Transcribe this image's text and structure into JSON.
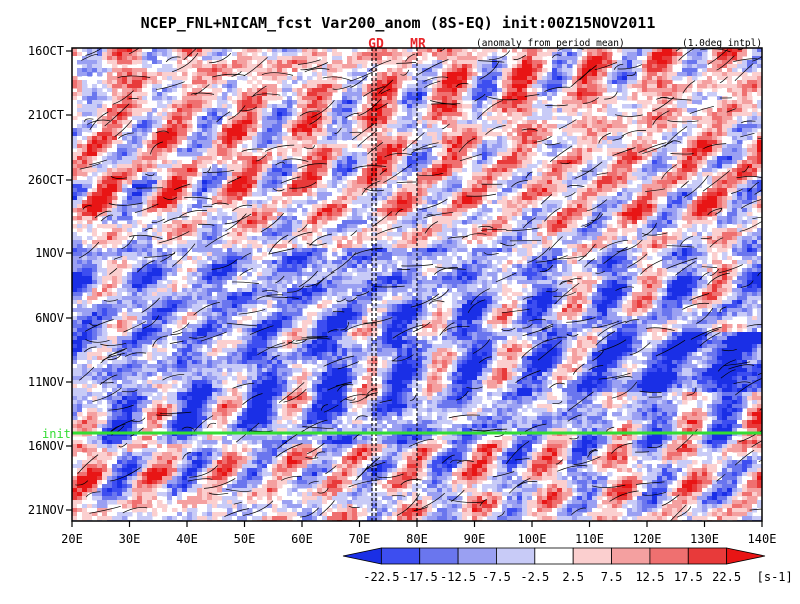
{
  "chart_data": {
    "type": "heatmap",
    "title": "NCEP_FNL+NICAM_fcst Var200_anom (8S-EQ) init:00Z15NOV2011",
    "subtitle_left": "(anomaly from period mean)",
    "subtitle_right": "(1.0deg intpl)",
    "x_ticks": [
      "20E",
      "30E",
      "40E",
      "50E",
      "60E",
      "70E",
      "80E",
      "90E",
      "100E",
      "110E",
      "120E",
      "130E",
      "140E"
    ],
    "x_range": [
      20,
      140
    ],
    "y_ticks": [
      "16OCT",
      "21OCT",
      "26OCT",
      "1NOV",
      "6NOV",
      "11NOV",
      "16NOV",
      "21NOV"
    ],
    "y_range_days": [
      "16OCT2011",
      "22NOV2011"
    ],
    "markers": [
      {
        "label": "GD",
        "lon": 73,
        "color": "#e8262a"
      },
      {
        "label": "MR",
        "lon": 79.5,
        "color": "#e8262a"
      }
    ],
    "init_line": {
      "label": "init",
      "date": "15NOV2011",
      "color": "#33dd33"
    },
    "colorbar": {
      "levels": [
        "-22.5",
        "-17.5",
        "-12.5",
        "-7.5",
        "-2.5",
        "2.5",
        "7.5",
        "12.5",
        "17.5",
        "22.5"
      ],
      "unit": "[s-1]",
      "colors": [
        "#1a2fe6",
        "#3d4ef0",
        "#6a76ee",
        "#9aa0f2",
        "#c8cbf7",
        "#ffffff",
        "#fbcfcf",
        "#f4a0a0",
        "#ef7070",
        "#e83a3a",
        "#e81515"
      ]
    }
  }
}
